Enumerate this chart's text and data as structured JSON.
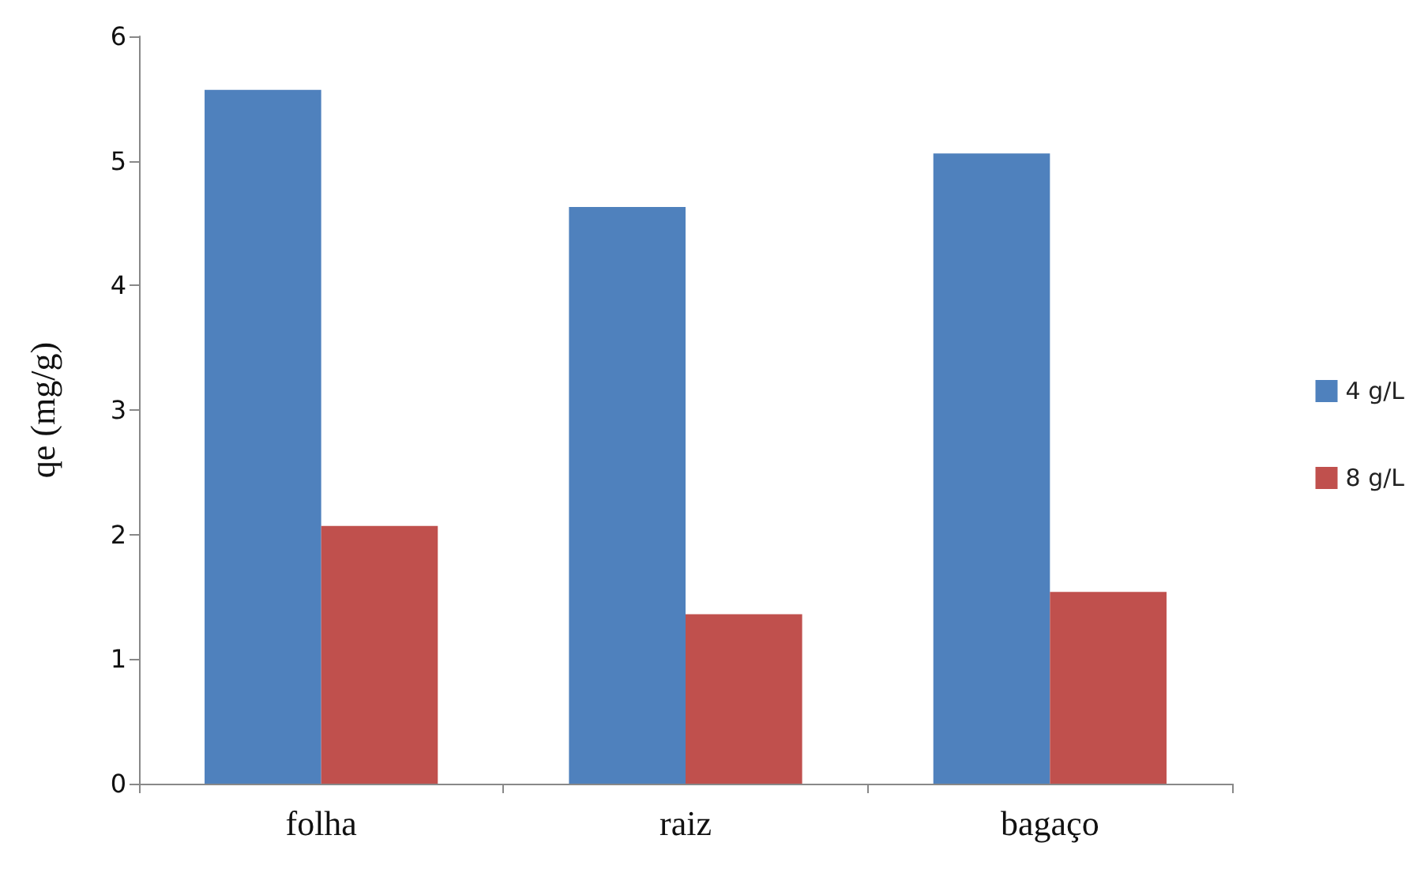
{
  "chart_data": {
    "type": "bar",
    "ylabel": "qe (mg/g)",
    "categories": [
      "folha",
      "raiz",
      "bagaço"
    ],
    "series": [
      {
        "name": "4 g/L",
        "color": "#4f81bd",
        "values": [
          5.57,
          4.63,
          5.06
        ]
      },
      {
        "name": "8 g/L",
        "color": "#c0504d",
        "values": [
          2.07,
          1.36,
          1.54
        ]
      }
    ],
    "ylim": [
      0,
      6
    ],
    "yticks": [
      0,
      1,
      2,
      3,
      4,
      5,
      6
    ],
    "grid": false,
    "legend": "right"
  }
}
